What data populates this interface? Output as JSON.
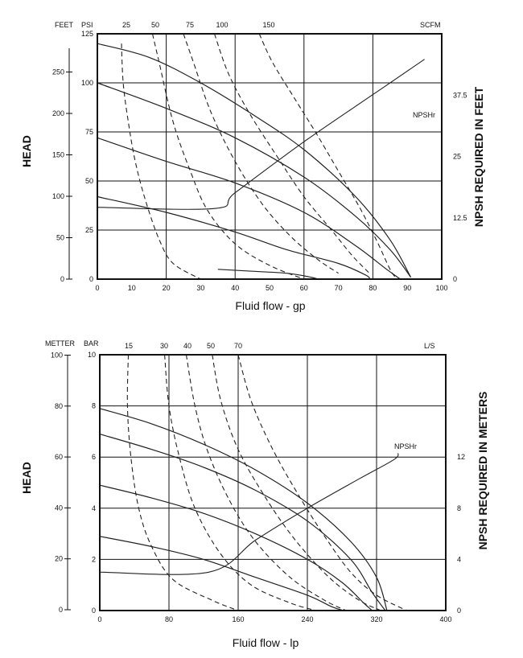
{
  "chart_data": [
    {
      "type": "line",
      "xlabel": "Fluid flow - gp",
      "left_axis_title": "HEAD",
      "right_axis_title": "NPSH REQUIRED IN FEET",
      "feet_unit": "FEET",
      "psi_unit": "PSI",
      "scfm_unit": "SCFM",
      "npsh_label": "NPSHr",
      "x_range": [
        0,
        100
      ],
      "x_ticks": [
        "0",
        "10",
        "20",
        "30",
        "40",
        "50",
        "60",
        "70",
        "80",
        "90",
        "100"
      ],
      "psi_range": [
        0,
        125
      ],
      "psi_ticks": [
        "0",
        "25",
        "50",
        "75",
        "100",
        "125"
      ],
      "feet_ticks": [
        "0",
        "50",
        "100",
        "150",
        "200",
        "250"
      ],
      "npsh_ticks": [
        "0",
        "12.5",
        "25",
        "37.5"
      ],
      "scfm_labels": [
        "25",
        "50",
        "75",
        "100",
        "150"
      ],
      "grid": "x every 20, y every 25",
      "series": [
        {
          "values": [
            [
              0,
              120
            ],
            [
              15,
              113
            ],
            [
              30,
              100
            ],
            [
              45,
              84
            ],
            [
              60,
              66
            ],
            [
              75,
              42
            ],
            [
              85,
              20
            ],
            [
              91,
              1
            ]
          ]
        },
        {
          "values": [
            [
              0,
              100
            ],
            [
              20,
              87
            ],
            [
              40,
              72
            ],
            [
              60,
              52
            ],
            [
              75,
              32
            ],
            [
              85,
              15
            ],
            [
              91,
              1
            ]
          ]
        },
        {
          "values": [
            [
              0,
              72
            ],
            [
              20,
              60
            ],
            [
              40,
              49
            ],
            [
              60,
              34
            ],
            [
              75,
              17
            ],
            [
              84,
              5
            ],
            [
              88,
              0
            ]
          ]
        },
        {
          "values": [
            [
              0,
              42
            ],
            [
              20,
              34
            ],
            [
              40,
              24
            ],
            [
              55,
              15
            ],
            [
              70,
              8
            ],
            [
              78,
              2
            ],
            [
              79,
              0
            ]
          ]
        },
        {
          "values": [
            [
              35,
              5
            ],
            [
              45,
              4
            ],
            [
              55,
              3
            ],
            [
              62,
              1
            ],
            [
              64,
              0
            ]
          ]
        }
      ],
      "air_curves": [
        {
          "values": [
            [
              7,
              120
            ],
            [
              7.5,
              100
            ],
            [
              9,
              80
            ],
            [
              11,
              60
            ],
            [
              14,
              40
            ],
            [
              18,
              20
            ],
            [
              22,
              8
            ],
            [
              30,
              0
            ]
          ]
        },
        {
          "values": [
            [
              16,
              125
            ],
            [
              18,
              110
            ],
            [
              22,
              80
            ],
            [
              27,
              55
            ],
            [
              32,
              35
            ],
            [
              40,
              18
            ],
            [
              50,
              7
            ],
            [
              60,
              0
            ]
          ]
        },
        {
          "values": [
            [
              25,
              125
            ],
            [
              28,
              110
            ],
            [
              33,
              85
            ],
            [
              40,
              60
            ],
            [
              48,
              38
            ],
            [
              56,
              22
            ],
            [
              64,
              10
            ],
            [
              70,
              3
            ]
          ]
        },
        {
          "values": [
            [
              34,
              125
            ],
            [
              38,
              105
            ],
            [
              44,
              85
            ],
            [
              52,
              63
            ],
            [
              60,
              42
            ],
            [
              68,
              25
            ],
            [
              74,
              12
            ],
            [
              79,
              3
            ]
          ]
        },
        {
          "values": [
            [
              47,
              125
            ],
            [
              51,
              110
            ],
            [
              58,
              90
            ],
            [
              64,
              73
            ],
            [
              70,
              55
            ],
            [
              76,
              37
            ],
            [
              81,
              20
            ],
            [
              85,
              5
            ],
            [
              87,
              0
            ]
          ]
        }
      ],
      "npsh_curve": {
        "values": [
          [
            0,
            18.3
          ],
          [
            34,
            18.0
          ],
          [
            40,
            22
          ],
          [
            60,
            35
          ],
          [
            80,
            47
          ],
          [
            95,
            56
          ]
        ]
      }
    },
    {
      "type": "line",
      "xlabel": "Fluid flow - lp",
      "left_axis_title": "HEAD",
      "right_axis_title": "NPSH REQUIRED IN METERS",
      "meter_unit": "METTER",
      "bar_unit": "BAR",
      "ls_unit": "L/S",
      "npsh_label": "NPSHr",
      "x_range": [
        0,
        400
      ],
      "x_ticks": [
        "0",
        "80",
        "160",
        "240",
        "320",
        "400"
      ],
      "bar_range": [
        0,
        10
      ],
      "bar_ticks": [
        "0",
        "2",
        "4",
        "6",
        "8",
        "10"
      ],
      "meter_ticks": [
        "0",
        "20",
        "40",
        "60",
        "80",
        "100"
      ],
      "npsh_ticks": [
        "0",
        "4",
        "8",
        "12"
      ],
      "ls_labels": [
        "15",
        "30",
        "40",
        "50",
        "70"
      ],
      "grid": "x every 80, y every 2",
      "series": [
        {
          "values": [
            [
              0,
              7.9
            ],
            [
              60,
              7.3
            ],
            [
              120,
              6.5
            ],
            [
              180,
              5.5
            ],
            [
              240,
              4.2
            ],
            [
              290,
              2.7
            ],
            [
              320,
              1.3
            ],
            [
              332,
              0
            ]
          ]
        },
        {
          "values": [
            [
              0,
              6.9
            ],
            [
              60,
              6.3
            ],
            [
              120,
              5.6
            ],
            [
              180,
              4.7
            ],
            [
              240,
              3.5
            ],
            [
              290,
              2.0
            ],
            [
              315,
              0.7
            ],
            [
              330,
              0
            ]
          ]
        },
        {
          "values": [
            [
              0,
              4.9
            ],
            [
              60,
              4.4
            ],
            [
              120,
              3.8
            ],
            [
              180,
              3.0
            ],
            [
              240,
              2.0
            ],
            [
              280,
              1.1
            ],
            [
              305,
              0.3
            ],
            [
              315,
              0
            ]
          ]
        },
        {
          "values": [
            [
              0,
              2.9
            ],
            [
              60,
              2.5
            ],
            [
              120,
              2.0
            ],
            [
              180,
              1.3
            ],
            [
              240,
              0.6
            ],
            [
              268,
              0.15
            ],
            [
              282,
              0
            ]
          ]
        }
      ],
      "air_curves": [
        {
          "values": [
            [
              33,
              10
            ],
            [
              32,
              8
            ],
            [
              36,
              6
            ],
            [
              45,
              4
            ],
            [
              60,
              2.5
            ],
            [
              85,
              1.2
            ],
            [
              130,
              0.4
            ],
            [
              160,
              0
            ]
          ]
        },
        {
          "values": [
            [
              75,
              10
            ],
            [
              80,
              8
            ],
            [
              92,
              6
            ],
            [
              110,
              4
            ],
            [
              140,
              2.2
            ],
            [
              175,
              1
            ],
            [
              220,
              0.3
            ],
            [
              250,
              0
            ]
          ]
        },
        {
          "values": [
            [
              100,
              10
            ],
            [
              110,
              8
            ],
            [
              125,
              6.2
            ],
            [
              150,
              4.3
            ],
            [
              180,
              2.7
            ],
            [
              220,
              1.3
            ],
            [
              260,
              0.4
            ],
            [
              285,
              0
            ]
          ]
        },
        {
          "values": [
            [
              130,
              10
            ],
            [
              140,
              8.2
            ],
            [
              160,
              6.3
            ],
            [
              190,
              4.5
            ],
            [
              225,
              2.8
            ],
            [
              265,
              1.3
            ],
            [
              300,
              0.4
            ],
            [
              325,
              0
            ]
          ]
        },
        {
          "values": [
            [
              160,
              10
            ],
            [
              175,
              8.2
            ],
            [
              200,
              6.3
            ],
            [
              230,
              4.5
            ],
            [
              260,
              2.9
            ],
            [
              290,
              1.5
            ],
            [
              320,
              0.6
            ],
            [
              355,
              0
            ]
          ]
        }
      ],
      "npsh_curve": {
        "values": [
          [
            0,
            3.0
          ],
          [
            126,
            3.0
          ],
          [
            180,
            5.5
          ],
          [
            240,
            8.0
          ],
          [
            300,
            10.3
          ],
          [
            340,
            11.8
          ],
          [
            345,
            12.3
          ]
        ]
      }
    }
  ]
}
